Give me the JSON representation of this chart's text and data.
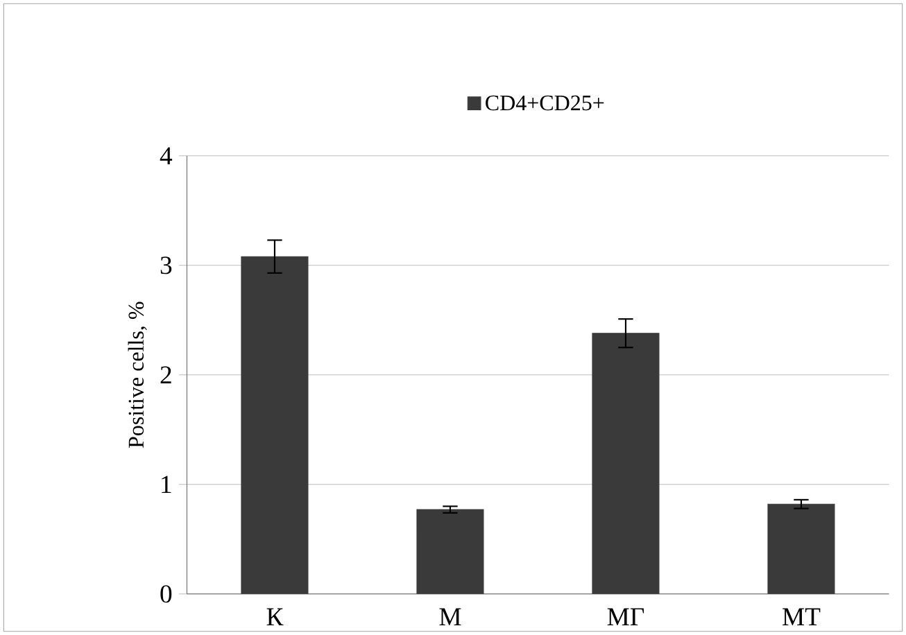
{
  "chart_data": {
    "type": "bar",
    "ylabel": "Positive cells, %",
    "categories": [
      "К",
      "М",
      "МГ",
      "МТ"
    ],
    "series": [
      {
        "name": "CD4+CD25+",
        "color": "#3a3a3a",
        "values": [
          3.08,
          0.77,
          2.38,
          0.82
        ],
        "errors": [
          0.15,
          0.03,
          0.13,
          0.04
        ]
      }
    ],
    "ylim": [
      0,
      4
    ],
    "yticks": [
      0,
      1,
      2,
      3,
      4
    ],
    "grid": "y",
    "legend": "top"
  }
}
